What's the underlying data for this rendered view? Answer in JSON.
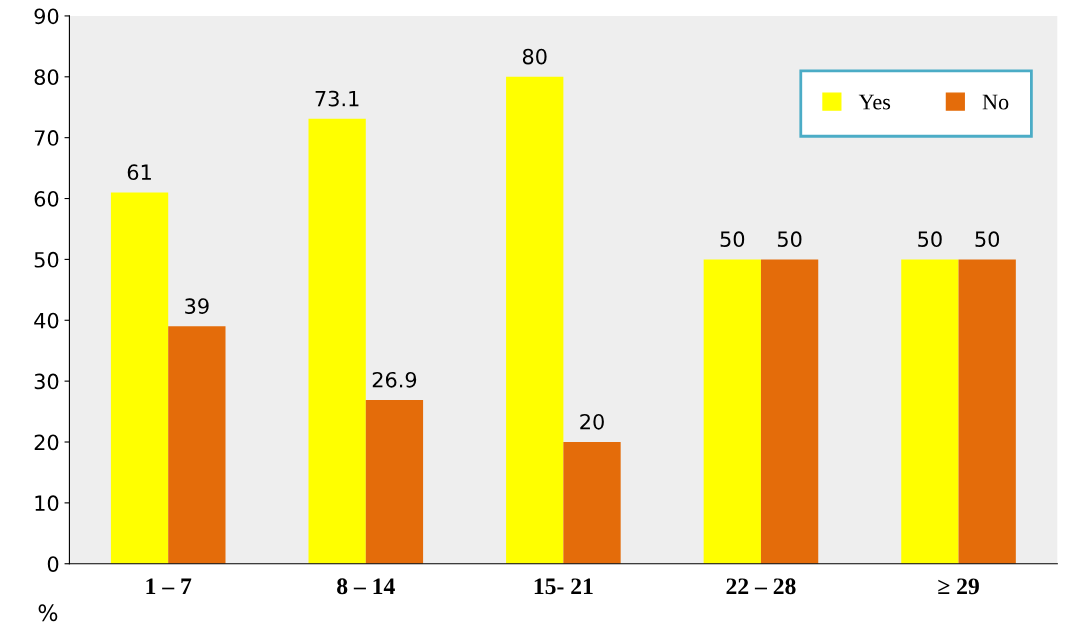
{
  "chart_data": {
    "type": "bar",
    "categories": [
      "1 – 7",
      "8 – 14",
      "15- 21",
      "22 – 28",
      "≥ 29"
    ],
    "series": [
      {
        "name": "Yes",
        "color": "#ffff00",
        "values": [
          61,
          73.1,
          80,
          50,
          50
        ]
      },
      {
        "name": "No",
        "color": "#e46c0a",
        "values": [
          39,
          26.9,
          20,
          50,
          50
        ]
      }
    ],
    "ylim": [
      0,
      90
    ],
    "yticks": [
      0,
      10,
      20,
      30,
      40,
      50,
      60,
      70,
      80,
      90
    ],
    "data_labels": true,
    "legend": "top right",
    "grid": false,
    "annotations": [
      "%"
    ]
  }
}
